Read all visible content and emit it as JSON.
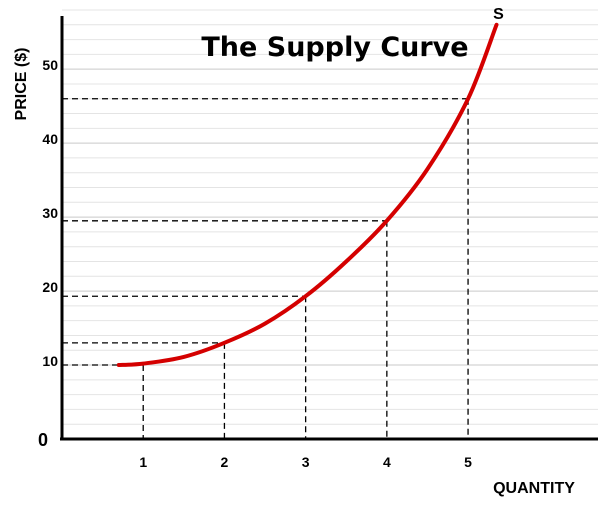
{
  "chart_data": {
    "type": "line",
    "title": "The Supply Curve",
    "xlabel": "QUANTITY",
    "ylabel": "PRICE ($)",
    "xlim": [
      0,
      6.6
    ],
    "ylim": [
      0,
      58
    ],
    "origin_label": "0",
    "x_ticks": [
      1,
      2,
      3,
      4,
      5
    ],
    "x_tick_labels": [
      "1",
      "2",
      "3",
      "4",
      "5"
    ],
    "y_ticks": [
      10,
      20,
      30,
      40,
      50
    ],
    "y_tick_labels": [
      "10",
      "20",
      "30",
      "40",
      "50"
    ],
    "grid": true,
    "grid_minor_y_step": 2,
    "series": [
      {
        "name": "S",
        "color": "#d40000",
        "x": [
          0.7,
          1,
          1.5,
          2,
          2.5,
          3,
          3.5,
          4,
          4.5,
          5,
          5.35
        ],
        "y": [
          10,
          10.2,
          11.1,
          13,
          15.6,
          19.3,
          24,
          29.5,
          36.5,
          46,
          56
        ]
      }
    ],
    "reference_points": [
      {
        "x": 1,
        "y": 10
      },
      {
        "x": 2,
        "y": 13
      },
      {
        "x": 3,
        "y": 19.3
      },
      {
        "x": 4,
        "y": 29.5
      },
      {
        "x": 5,
        "y": 46
      }
    ]
  }
}
